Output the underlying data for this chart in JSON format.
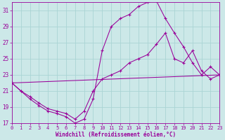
{
  "xlabel": "Windchill (Refroidissement éolien,°C)",
  "xlim": [
    0,
    23
  ],
  "ylim": [
    17,
    32
  ],
  "yticks": [
    17,
    19,
    21,
    23,
    25,
    27,
    29,
    31
  ],
  "xticks": [
    0,
    1,
    2,
    3,
    4,
    5,
    6,
    7,
    8,
    9,
    10,
    11,
    12,
    13,
    14,
    15,
    16,
    17,
    18,
    19,
    20,
    21,
    22,
    23
  ],
  "bg_color": "#cce8e8",
  "grid_color": "#aad4d4",
  "line_color": "#990099",
  "curve1_x": [
    0,
    1,
    2,
    3,
    4,
    5,
    6,
    7,
    8,
    9,
    10,
    11,
    12,
    13,
    14,
    15,
    16,
    17,
    18,
    19,
    20,
    21,
    22,
    23
  ],
  "curve1_y": [
    22.0,
    21.0,
    20.0,
    19.2,
    18.5,
    18.2,
    17.8,
    17.0,
    17.5,
    20.0,
    26.0,
    29.0,
    30.0,
    30.5,
    31.5,
    32.0,
    32.2,
    30.0,
    28.2,
    26.5,
    24.5,
    23.0,
    24.0,
    23.0
  ],
  "curve2_x": [
    0,
    1,
    2,
    3,
    4,
    5,
    6,
    7,
    8,
    9,
    10,
    11,
    12,
    13,
    14,
    15,
    16,
    17,
    18,
    19,
    20,
    21,
    22,
    23
  ],
  "curve2_y": [
    22.0,
    21.0,
    20.3,
    19.5,
    18.8,
    18.5,
    18.2,
    17.5,
    18.5,
    21.0,
    22.5,
    23.0,
    23.5,
    24.5,
    25.0,
    25.5,
    26.8,
    28.2,
    25.0,
    24.5,
    26.0,
    23.5,
    22.5,
    23.0
  ],
  "curve3_x": [
    0,
    23
  ],
  "curve3_y": [
    22.0,
    23.0
  ]
}
